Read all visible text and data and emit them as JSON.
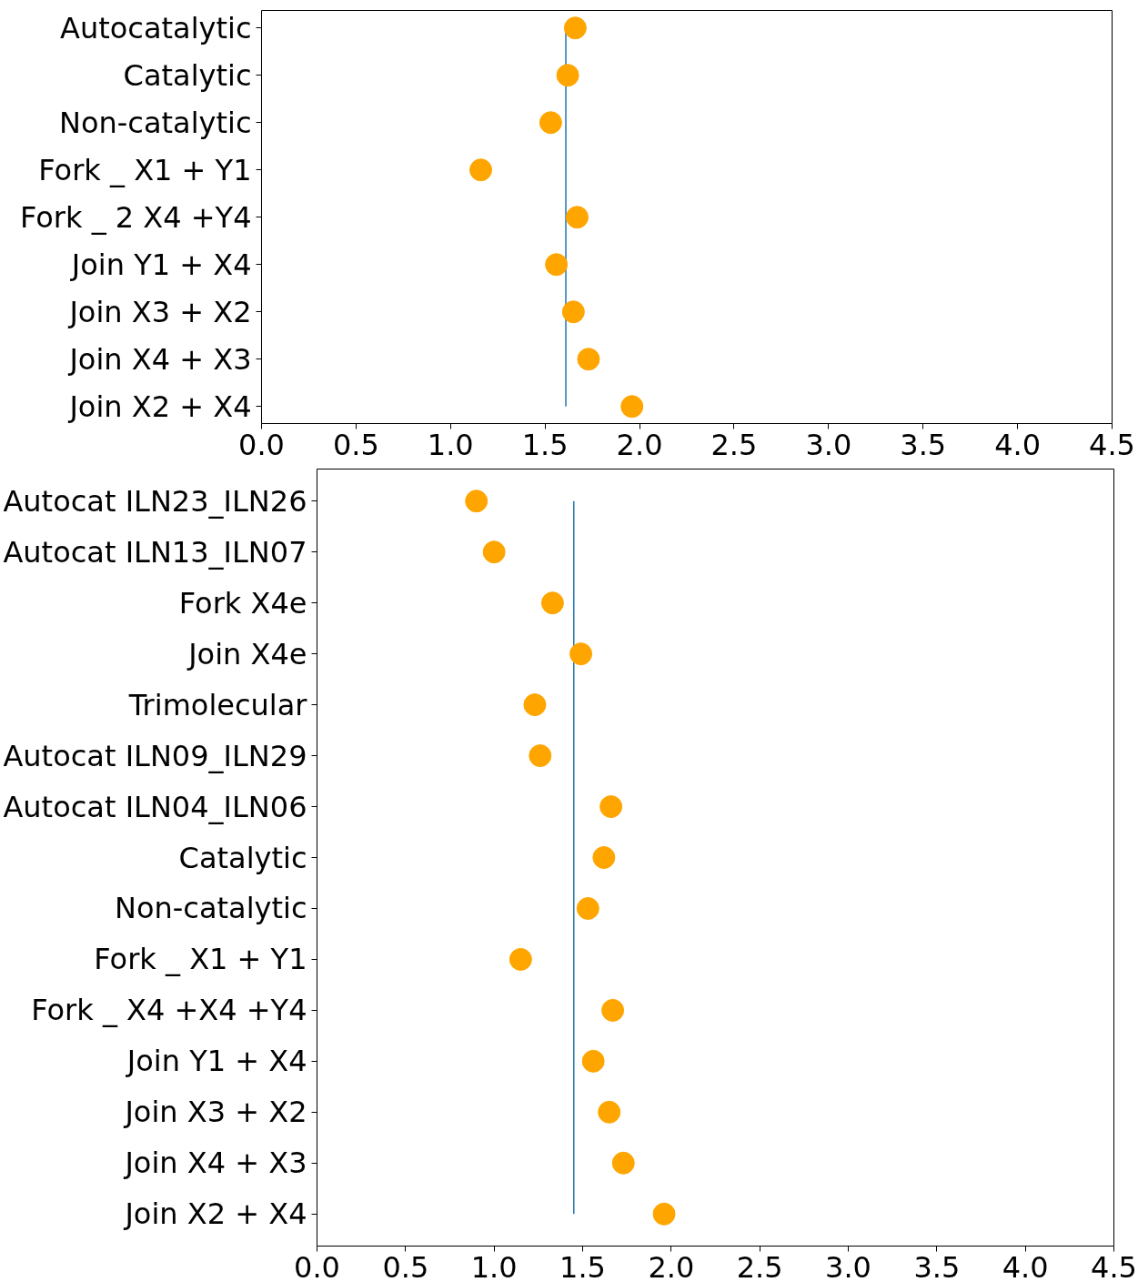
{
  "chart_data": [
    {
      "type": "scatter",
      "categories": [
        "Autocatalytic",
        "Catalytic",
        "Non-catalytic",
        "Fork _ X1 + Y1",
        "Fork _ 2 X4 +Y4",
        "Join Y1 + X4",
        "Join X3 + X2",
        "Join X4 + X3",
        "Join X2 + X4"
      ],
      "series": [
        {
          "color": "#ffa500",
          "values": [
            1.66,
            1.62,
            1.53,
            1.16,
            1.67,
            1.56,
            1.65,
            1.73,
            1.96
          ]
        }
      ],
      "marker": "circle",
      "grid": false,
      "orientation": "horizontal",
      "xlim": [
        0,
        4.5
      ],
      "xticks": [
        {
          "value": 0,
          "label": "0.0"
        },
        {
          "value": 0.5,
          "label": "0.5"
        },
        {
          "value": 1,
          "label": "1.0"
        },
        {
          "value": 1.5,
          "label": "1.5"
        },
        {
          "value": 2,
          "label": "2.0"
        },
        {
          "value": 2.5,
          "label": "2.5"
        },
        {
          "value": 3,
          "label": "3.0"
        },
        {
          "value": 3.5,
          "label": "3.5"
        },
        {
          "value": 4,
          "label": "4.0"
        },
        {
          "value": 4.5,
          "label": "4.5"
        }
      ],
      "ref_lines": [
        {
          "axis": "x",
          "value": 1.61,
          "color": "#1f77b4"
        }
      ]
    },
    {
      "type": "scatter",
      "categories": [
        "Autocat ILN23_ILN26",
        "Autocat ILN13_ILN07",
        "Fork X4e",
        "Join X4e",
        "Trimolecular",
        "Autocat ILN09_ILN29",
        "Autocat ILN04_ILN06",
        "Catalytic",
        "Non-catalytic",
        "Fork _ X1 + Y1",
        "Fork _ X4 +X4 +Y4",
        "Join Y1 + X4",
        "Join X3 + X2",
        "Join X4 + X3",
        "Join X2 + X4"
      ],
      "series": [
        {
          "color": "#ffa500",
          "values": [
            0.9,
            1.0,
            1.33,
            1.49,
            1.23,
            1.26,
            1.66,
            1.62,
            1.53,
            1.15,
            1.67,
            1.56,
            1.65,
            1.73,
            1.96
          ]
        }
      ],
      "marker": "circle",
      "grid": false,
      "orientation": "horizontal",
      "xlim": [
        0,
        4.5
      ],
      "xticks": [
        {
          "value": 0,
          "label": "0.0"
        },
        {
          "value": 0.5,
          "label": "0.5"
        },
        {
          "value": 1,
          "label": "1.0"
        },
        {
          "value": 1.5,
          "label": "1.5"
        },
        {
          "value": 2,
          "label": "2.0"
        },
        {
          "value": 2.5,
          "label": "2.5"
        },
        {
          "value": 3,
          "label": "3.0"
        },
        {
          "value": 3.5,
          "label": "3.5"
        },
        {
          "value": 4,
          "label": "4.0"
        },
        {
          "value": 4.5,
          "label": "4.5"
        }
      ],
      "ref_lines": [
        {
          "axis": "x",
          "value": 1.45,
          "color": "#1f77b4"
        }
      ]
    }
  ]
}
